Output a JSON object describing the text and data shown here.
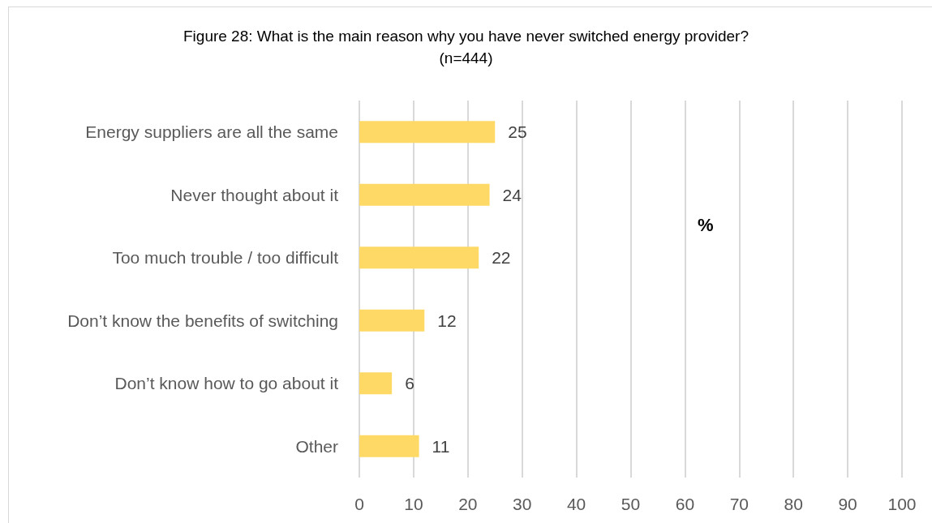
{
  "chart_data": {
    "type": "bar",
    "orientation": "horizontal",
    "title": "Figure 28: What is the main reason why you have never switched energy provider?",
    "subtitle": "(n=444)",
    "xlabel": "%",
    "categories": [
      "Energy suppliers are all the same",
      "Never thought about it",
      "Too much trouble / too difficult",
      "Don’t know the benefits of switching",
      "Don’t know how to go about it",
      "Other"
    ],
    "values": [
      25,
      24,
      22,
      12,
      6,
      11
    ],
    "color": "#ffd966",
    "xlim": [
      0,
      100
    ],
    "xticks": [
      0,
      10,
      20,
      30,
      40,
      50,
      60,
      70,
      80,
      90,
      100
    ],
    "grid": "x",
    "data_labels": true
  }
}
